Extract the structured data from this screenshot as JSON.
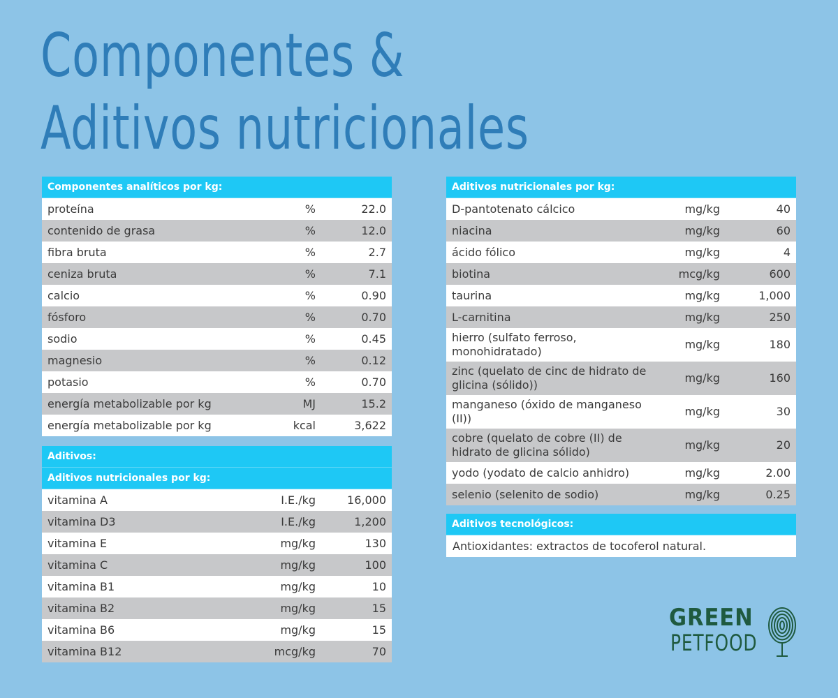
{
  "title": {
    "line1": "Componentes &",
    "line2": "Aditivos nutricionales"
  },
  "analytic": {
    "header": "Componentes analíticos por kg:",
    "rows": [
      {
        "name": "proteína",
        "unit": "%",
        "value": "22.0"
      },
      {
        "name": "contenido de grasa",
        "unit": "%",
        "value": "12.0"
      },
      {
        "name": "fibra bruta",
        "unit": "%",
        "value": "2.7"
      },
      {
        "name": "ceniza bruta",
        "unit": "%",
        "value": "7.1"
      },
      {
        "name": "calcio",
        "unit": "%",
        "value": "0.90"
      },
      {
        "name": "fósforo",
        "unit": "%",
        "value": "0.70"
      },
      {
        "name": "sodio",
        "unit": "%",
        "value": "0.45"
      },
      {
        "name": "magnesio",
        "unit": "%",
        "value": "0.12"
      },
      {
        "name": "potasio",
        "unit": "%",
        "value": "0.70"
      },
      {
        "name": "energía metabolizable por kg",
        "unit": "MJ",
        "value": "15.2"
      },
      {
        "name": "energía metabolizable por kg",
        "unit": "kcal",
        "value": "3,622"
      }
    ]
  },
  "additives": {
    "header": "Aditivos:",
    "subheader": "Aditivos nutricionales por kg:",
    "rows": [
      {
        "name": "vitamina A",
        "unit": "I.E./kg",
        "value": "16,000"
      },
      {
        "name": "vitamina D3",
        "unit": "I.E./kg",
        "value": "1,200"
      },
      {
        "name": "vitamina E",
        "unit": "mg/kg",
        "value": "130"
      },
      {
        "name": "vitamina C",
        "unit": "mg/kg",
        "value": "100"
      },
      {
        "name": "vitamina B1",
        "unit": "mg/kg",
        "value": "10"
      },
      {
        "name": "vitamina B2",
        "unit": "mg/kg",
        "value": "15"
      },
      {
        "name": "vitamina B6",
        "unit": "mg/kg",
        "value": "15"
      },
      {
        "name": "vitamina B12",
        "unit": "mcg/kg",
        "value": "70"
      }
    ]
  },
  "nutritional": {
    "header": "Aditivos nutricionales por kg:",
    "rows": [
      {
        "name": "D-pantotenato cálcico",
        "unit": "mg/kg",
        "value": "40"
      },
      {
        "name": "niacina",
        "unit": "mg/kg",
        "value": "60"
      },
      {
        "name": "ácido fólico",
        "unit": "mg/kg",
        "value": "4"
      },
      {
        "name": "biotina",
        "unit": "mcg/kg",
        "value": "600"
      },
      {
        "name": "taurina",
        "unit": "mg/kg",
        "value": "1,000"
      },
      {
        "name": "L-carnitina",
        "unit": "mg/kg",
        "value": "250"
      },
      {
        "name": "hierro (sulfato ferroso, monohidratado)",
        "unit": "mg/kg",
        "value": "180"
      },
      {
        "name": "zinc (quelato de cinc de hidrato de glicina (sólido))",
        "unit": "mg/kg",
        "value": "160"
      },
      {
        "name": "manganeso (óxido de manganeso (II))",
        "unit": "mg/kg",
        "value": "30"
      },
      {
        "name": "cobre (quelato de cobre (II) de hidrato de glicina sólido)",
        "unit": "mg/kg",
        "value": "20"
      },
      {
        "name": "yodo (yodato de calcio anhidro)",
        "unit": "mg/kg",
        "value": "2.00"
      },
      {
        "name": "selenio (selenito de sodio)",
        "unit": "mg/kg",
        "value": "0.25"
      }
    ]
  },
  "technological": {
    "header": "Aditivos tecnológicos:",
    "text": "Antioxidantes: extractos de tocoferol natural."
  },
  "logo": {
    "line1": "GREEN",
    "line2": "PETFOOD",
    "icon": "fingerprint-tree-icon"
  },
  "colors": {
    "background": "#8dc4e7",
    "title": "#2f7db8",
    "header": "#1ec8f5",
    "stripe": "#c7c8ca",
    "logo": "#1f5a3f"
  }
}
